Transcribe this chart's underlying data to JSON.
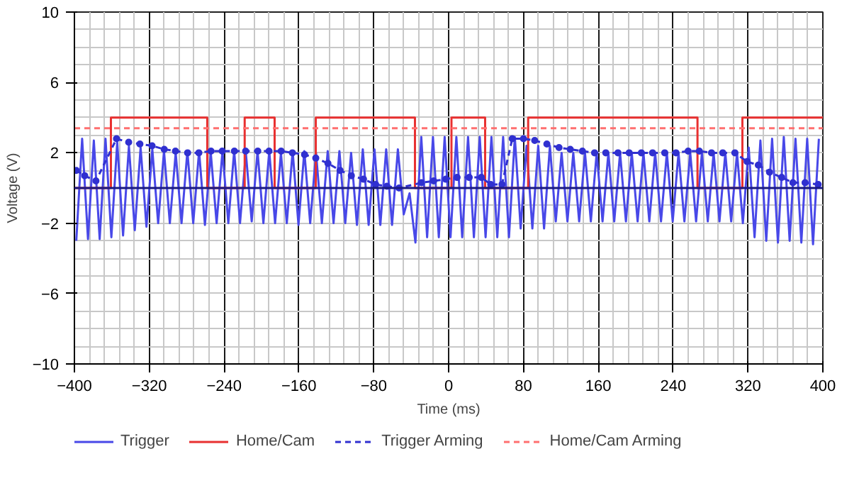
{
  "chart_data": {
    "type": "line",
    "xlabel": "Time (ms)",
    "ylabel": "Voltage (V)",
    "xlim": [
      -400,
      400
    ],
    "xticks": [
      -400,
      -320,
      -240,
      -160,
      -80,
      0,
      80,
      160,
      240,
      320,
      400
    ],
    "ylim": [
      -10,
      10
    ],
    "yticks": [
      -10,
      -6,
      -2,
      2,
      6,
      10
    ],
    "grid": true,
    "legend": "bottom",
    "ref_lines": [
      {
        "axis": "y",
        "value": 0,
        "label": null,
        "color": "#1a1a80"
      }
    ],
    "series": [
      {
        "name": "Trigger",
        "color": "#4848e8",
        "line_style": "solid",
        "marker": "none",
        "x": [
          -398,
          -391.75,
          -385.5,
          -379.25,
          -373,
          -366.75,
          -360.5,
          -354.25,
          -348,
          -341.75,
          -335.5,
          -329.25,
          -323,
          -316.75,
          -310.5,
          -304.25,
          -298,
          -291.75,
          -285.5,
          -279.25,
          -273,
          -266.75,
          -260.5,
          -254.25,
          -248,
          -241.75,
          -235.5,
          -229.25,
          -223,
          -216.75,
          -210.5,
          -204.25,
          -198,
          -191.75,
          -185.5,
          -179.25,
          -173,
          -166.75,
          -160.5,
          -154.25,
          -148,
          -141.75,
          -135.5,
          -129.25,
          -123,
          -116.75,
          -110.5,
          -104.25,
          -98,
          -91.75,
          -85.5,
          -79.25,
          -73,
          -66.75,
          -60.5,
          -54.25,
          -48,
          -41.75,
          -35.5,
          -29.25,
          -23,
          -16.75,
          -10.5,
          -4.25,
          2,
          8.25,
          14.5,
          20.75,
          27,
          33.25,
          39.5,
          45.75,
          52,
          58.25,
          64.5,
          70.75,
          77,
          83.25,
          89.5,
          95.75,
          102,
          108.25,
          114.5,
          120.75,
          127,
          133.25,
          139.5,
          145.75,
          152,
          158.25,
          164.5,
          170.75,
          177,
          183.25,
          189.5,
          195.75,
          202,
          208.25,
          214.5,
          220.75,
          227,
          233.25,
          239.5,
          245.75,
          252,
          258.25,
          264.5,
          270.75,
          277,
          283.25,
          289.5,
          295.75,
          302,
          308.25,
          314.5,
          320.75,
          327,
          333.25,
          339.5,
          345.75,
          352,
          358.25,
          364.5,
          370.75,
          377,
          383.25,
          389.5,
          395.75
        ],
        "values": [
          -3.0,
          2.8,
          -2.9,
          2.7,
          -2.9,
          2.8,
          -2.8,
          2.6,
          -2.7,
          2.4,
          -2.4,
          2.3,
          -2.2,
          2.2,
          -2.0,
          2.1,
          -2.0,
          2.0,
          -2.0,
          2.1,
          -2.0,
          2.1,
          -2.1,
          2.0,
          -2.0,
          2.1,
          -2.0,
          2.1,
          -2.0,
          2.0,
          -1.9,
          2.1,
          -2.0,
          2.1,
          -2.0,
          2.0,
          -2.0,
          2.1,
          -2.1,
          2.1,
          -2.0,
          2.0,
          -2.0,
          2.1,
          -2.0,
          2.1,
          -2.0,
          2.0,
          -2.1,
          2.2,
          -2.1,
          2.2,
          -2.1,
          2.2,
          -2.1,
          2.2,
          -1.5,
          -0.3,
          -3.1,
          2.9,
          -2.8,
          2.9,
          -2.8,
          2.9,
          -2.8,
          2.9,
          -2.8,
          2.9,
          -2.8,
          2.9,
          -2.8,
          2.9,
          -2.8,
          2.9,
          -2.8,
          2.9,
          -2.3,
          2.4,
          -2.3,
          2.4,
          -2.3,
          2.4,
          -1.9,
          2.0,
          -1.9,
          2.0,
          -1.9,
          2.0,
          -1.9,
          2.0,
          -1.9,
          2.0,
          -1.9,
          2.0,
          -1.9,
          2.0,
          -1.9,
          2.0,
          -1.9,
          2.0,
          -1.9,
          2.0,
          -1.9,
          2.0,
          -1.9,
          2.0,
          -1.9,
          2.0,
          -1.9,
          2.0,
          -1.9,
          2.0,
          -1.9,
          2.0,
          -2.0,
          2.3,
          -2.8,
          2.7,
          -3.0,
          2.8,
          -3.1,
          2.9,
          -3.0,
          2.8,
          -3.1,
          2.8,
          -3.2,
          2.8
        ]
      },
      {
        "name": "Home/Cam",
        "color": "#e83030",
        "line_style": "solid",
        "marker": "none",
        "x": [
          -400,
          -361,
          -361,
          -258,
          -258,
          -218,
          -218,
          -186,
          -186,
          -142,
          -142,
          -36,
          -36,
          3,
          3,
          39,
          39,
          85,
          85,
          266,
          266,
          314,
          314,
          400
        ],
        "values": [
          0,
          0,
          4,
          4,
          0,
          0,
          4,
          4,
          0,
          0,
          4,
          4,
          0,
          0,
          4,
          4,
          0,
          0,
          4,
          4,
          0,
          0,
          4,
          4
        ]
      },
      {
        "name": "Trigger Arming",
        "color": "#3030d0",
        "line_style": "dashed",
        "marker": "circle",
        "x": [
          -398,
          -389,
          -377,
          -355,
          -342,
          -330,
          -317,
          -304,
          -292,
          -279,
          -267,
          -254,
          -242,
          -229,
          -217,
          -204,
          -192,
          -179,
          -167,
          -154,
          -142,
          -129,
          -116,
          -104,
          -91,
          -78,
          -66,
          -53,
          -29,
          -16,
          -3,
          9,
          22,
          35,
          45,
          57,
          68,
          80,
          92,
          105,
          118,
          130,
          143,
          156,
          168,
          181,
          193,
          206,
          218,
          231,
          243,
          256,
          268,
          281,
          293,
          306,
          319,
          331,
          343,
          356,
          368,
          381,
          395
        ],
        "values": [
          1.0,
          0.7,
          0.4,
          2.8,
          2.6,
          2.5,
          2.4,
          2.2,
          2.1,
          2.0,
          2.0,
          2.1,
          2.1,
          2.1,
          2.1,
          2.1,
          2.1,
          2.1,
          2.0,
          1.9,
          1.7,
          1.4,
          1.0,
          0.7,
          0.5,
          0.2,
          0.1,
          0.0,
          0.3,
          0.4,
          0.5,
          0.6,
          0.6,
          0.6,
          0.2,
          0.2,
          2.8,
          2.8,
          2.7,
          2.5,
          2.3,
          2.2,
          2.1,
          2.0,
          2.0,
          2.0,
          2.0,
          2.0,
          2.0,
          2.0,
          2.0,
          2.1,
          2.1,
          2.0,
          2.0,
          2.0,
          1.5,
          1.3,
          0.9,
          0.6,
          0.3,
          0.3,
          0.2
        ]
      },
      {
        "name": "Home/Cam Arming",
        "color": "#ff7070",
        "line_style": "dashed",
        "marker": "none",
        "x": [
          -400,
          400
        ],
        "values": [
          3.4,
          3.4
        ]
      }
    ]
  }
}
